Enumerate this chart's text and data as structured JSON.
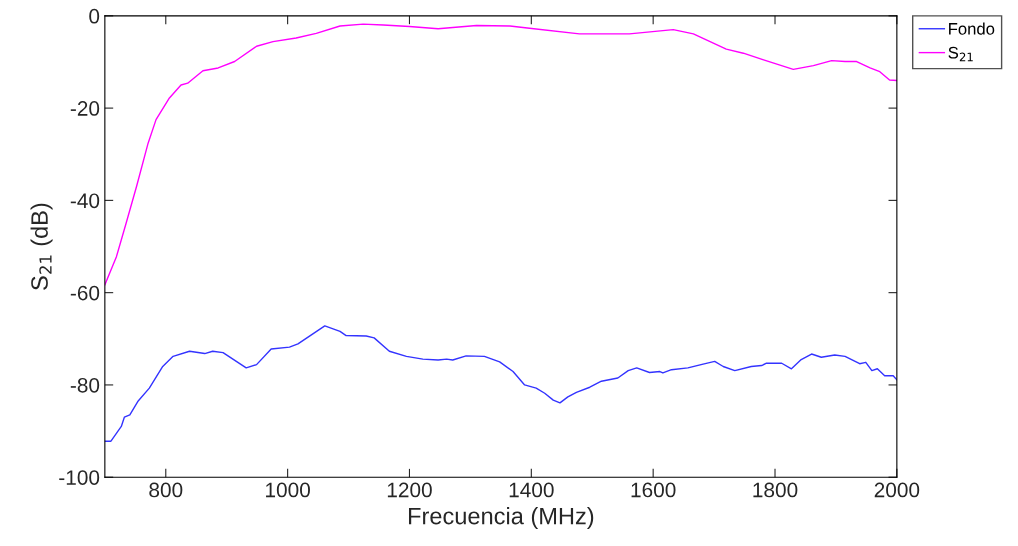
{
  "chart_data": {
    "type": "line",
    "xlabel": "Frecuencia (MHz)",
    "ylabel": "S$_{21}$ (dB)",
    "xlim": [
      700,
      2000
    ],
    "ylim": [
      -100,
      0
    ],
    "xticks": [
      800,
      1000,
      1200,
      1400,
      1600,
      1800,
      2000
    ],
    "yticks": [
      -100,
      -80,
      -60,
      -40,
      -20,
      0
    ],
    "grid": false,
    "legend": "top right",
    "marker": "none",
    "line_style": "solid",
    "series": [
      {
        "name": "Fondo",
        "color": "#3333ff",
        "x": [
          700,
          710,
          727,
          732,
          741,
          754,
          773,
          795,
          812,
          839,
          864,
          877,
          894,
          932,
          949,
          973,
          1003,
          1017,
          1061,
          1086,
          1096,
          1129,
          1142,
          1167,
          1195,
          1222,
          1247,
          1261,
          1271,
          1293,
          1323,
          1348,
          1370,
          1389,
          1408,
          1422,
          1436,
          1447,
          1460,
          1474,
          1496,
          1515,
          1542,
          1559,
          1573,
          1594,
          1611,
          1616,
          1630,
          1657,
          1682,
          1701,
          1715,
          1734,
          1761,
          1778,
          1786,
          1811,
          1827,
          1843,
          1860,
          1876,
          1898,
          1915,
          1939,
          1949,
          1959,
          1968,
          1980,
          1994,
          2000
        ],
        "values": [
          -92.2,
          -92.2,
          -89,
          -87,
          -86.5,
          -83.6,
          -80.7,
          -76,
          -73.8,
          -72.7,
          -73.2,
          -72.7,
          -73,
          -76.3,
          -75.6,
          -72.2,
          -71.8,
          -71.1,
          -67.2,
          -68.4,
          -69.3,
          -69.4,
          -69.8,
          -72.7,
          -73.8,
          -74.4,
          -74.6,
          -74.4,
          -74.6,
          -73.7,
          -73.8,
          -75,
          -77.1,
          -80,
          -80.7,
          -81.8,
          -83.3,
          -83.9,
          -82.6,
          -81.6,
          -80.5,
          -79.2,
          -78.5,
          -76.9,
          -76.3,
          -77.3,
          -77.1,
          -77.4,
          -76.7,
          -76.3,
          -75.5,
          -74.9,
          -76,
          -76.9,
          -76,
          -75.8,
          -75.3,
          -75.3,
          -76.5,
          -74.5,
          -73.3,
          -74,
          -73.5,
          -73.8,
          -75.4,
          -75.1,
          -76.9,
          -76.5,
          -78,
          -78,
          -78.9
        ]
      },
      {
        "name": "S$_{21}$",
        "color": "#ff00ff",
        "x": [
          700,
          719,
          735,
          752,
          771,
          784,
          806,
          825,
          836,
          861,
          886,
          913,
          949,
          976,
          1014,
          1047,
          1086,
          1124,
          1157,
          1200,
          1247,
          1310,
          1365,
          1397,
          1479,
          1561,
          1633,
          1666,
          1720,
          1748,
          1780,
          1830,
          1863,
          1893,
          1915,
          1934,
          1956,
          1972,
          1988,
          2000
        ],
        "values": [
          -58.3,
          -52.2,
          -44.9,
          -37,
          -27.6,
          -22.5,
          -17.8,
          -15,
          -14.6,
          -11.9,
          -11.3,
          -9.9,
          -6.6,
          -5.6,
          -4.8,
          -3.8,
          -2.2,
          -1.8,
          -2,
          -2.3,
          -2.8,
          -2.1,
          -2.2,
          -2.7,
          -3.9,
          -3.9,
          -3,
          -3.9,
          -7.2,
          -8.1,
          -9.5,
          -11.6,
          -10.8,
          -9.7,
          -9.9,
          -9.9,
          -11.3,
          -12.1,
          -13.9,
          -14
        ]
      }
    ]
  }
}
